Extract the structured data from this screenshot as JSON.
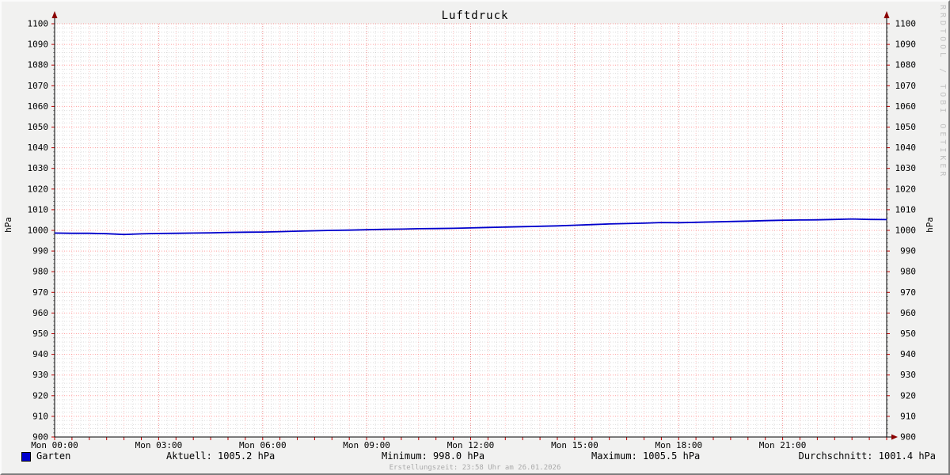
{
  "title": "Luftdruck",
  "watermark": "RRDTOOL / TOBI OETIKER",
  "axis": {
    "y_label_left": "hPa",
    "y_label_right": "hPa"
  },
  "legend": {
    "series_label": "Garten",
    "series_color": "#0000cc"
  },
  "stats": {
    "current": "Aktuell: 1005.2 hPa",
    "minimum": "Minimum: 998.0 hPa",
    "maximum": "Maximum: 1005.5 hPa",
    "average": "Durchschnitt: 1001.4 hPa"
  },
  "footer": "Erstellungszeit: 23:58 Uhr am 26.01.2026",
  "chart_data": {
    "type": "line",
    "title": "Luftdruck",
    "ylabel": "hPa",
    "ylim": [
      900,
      1100
    ],
    "y_tick_step": 10,
    "y_minor_step": 2,
    "x_range_hours": [
      0,
      24
    ],
    "x_tick_labels": [
      "Mon 00:00",
      "Mon 03:00",
      "Mon 06:00",
      "Mon 09:00",
      "Mon 12:00",
      "Mon 15:00",
      "Mon 18:00",
      "Mon 21:00"
    ],
    "x_tick_step_hours": 3,
    "grid": {
      "major_color": "#ff0000",
      "minor_color": "#999999",
      "style": "dotted",
      "legend_position": "bottom"
    },
    "x_hours": [
      0,
      0.5,
      1,
      1.5,
      2,
      2.5,
      3,
      3.5,
      4,
      4.5,
      5,
      5.5,
      6,
      6.5,
      7,
      7.5,
      8,
      8.5,
      9,
      9.5,
      10,
      10.5,
      11,
      11.5,
      12,
      12.5,
      13,
      13.5,
      14,
      14.5,
      15,
      15.5,
      16,
      16.5,
      17,
      17.5,
      18,
      18.5,
      19,
      19.5,
      20,
      20.5,
      21,
      21.5,
      22,
      22.5,
      23,
      23.5,
      24
    ],
    "series": [
      {
        "name": "Garten",
        "color": "#0000cc",
        "values": [
          998.7,
          998.6,
          998.6,
          998.4,
          998.0,
          998.3,
          998.5,
          998.6,
          998.7,
          998.8,
          999.0,
          999.1,
          999.2,
          999.4,
          999.6,
          999.8,
          1000.0,
          1000.1,
          1000.3,
          1000.5,
          1000.6,
          1000.8,
          1000.9,
          1001.0,
          1001.2,
          1001.4,
          1001.6,
          1001.8,
          1002.0,
          1002.2,
          1002.5,
          1002.8,
          1003.1,
          1003.3,
          1003.5,
          1003.8,
          1003.7,
          1003.9,
          1004.1,
          1004.3,
          1004.5,
          1004.7,
          1004.9,
          1005.0,
          1005.1,
          1005.3,
          1005.5,
          1005.3,
          1005.2
        ]
      }
    ]
  }
}
